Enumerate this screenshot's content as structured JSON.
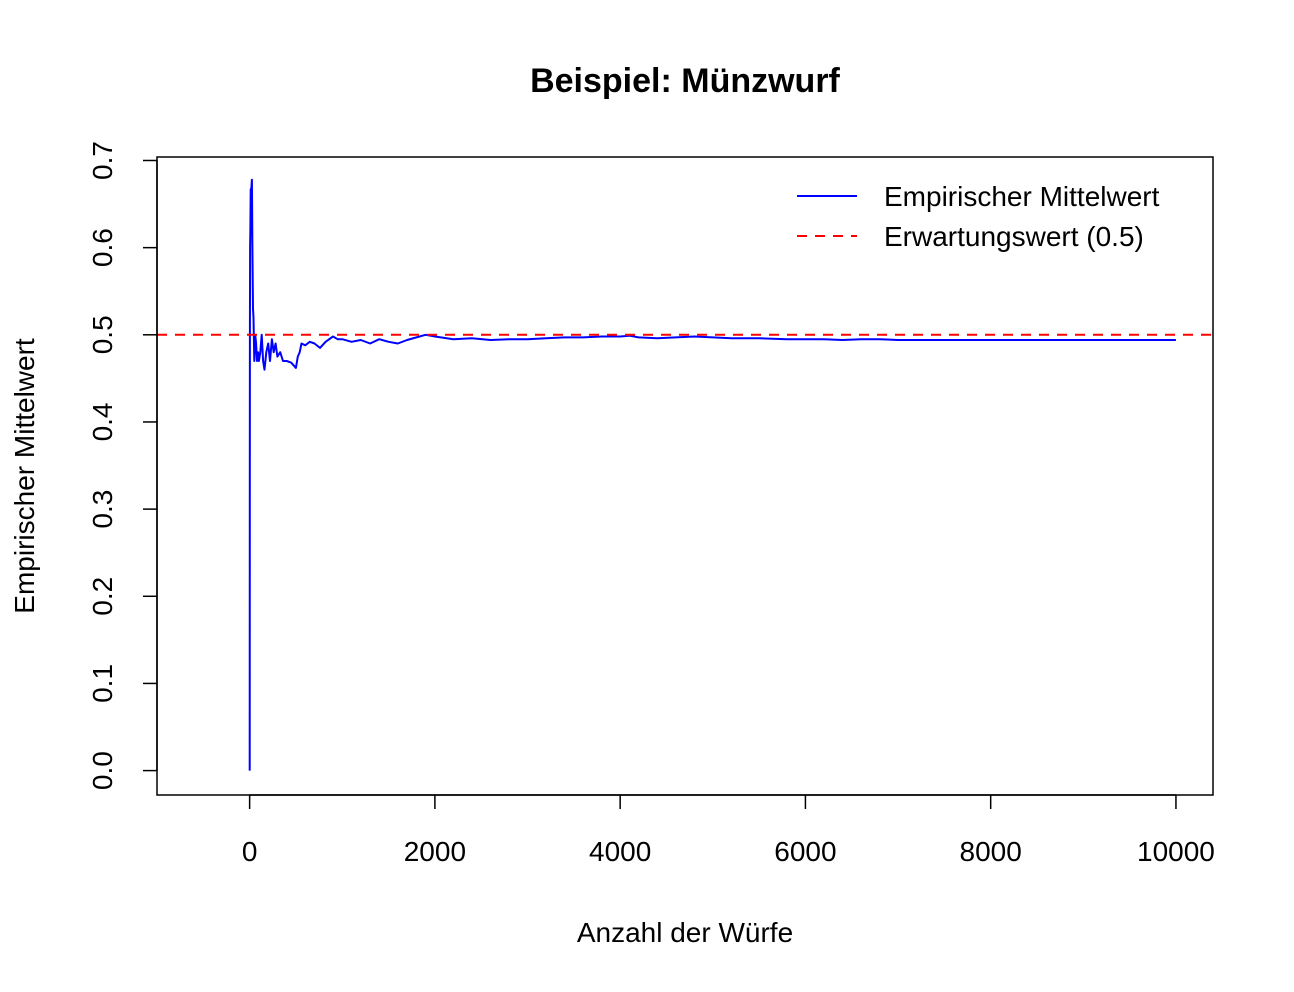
{
  "chart_data": {
    "type": "line",
    "title": "Beispiel: Münzwurf",
    "xlabel": "Anzahl der Würfe",
    "ylabel": "Empirischer Mittelwert",
    "xlim": [
      -1000,
      10400
    ],
    "ylim": [
      -0.028,
      0.704
    ],
    "x_ticks": [
      0,
      2000,
      4000,
      6000,
      8000,
      10000
    ],
    "x_tick_labels": [
      "0",
      "2000",
      "4000",
      "6000",
      "8000",
      "10000"
    ],
    "y_ticks": [
      0.0,
      0.1,
      0.2,
      0.3,
      0.4,
      0.5,
      0.6,
      0.7
    ],
    "y_tick_labels": [
      "0.0",
      "0.1",
      "0.2",
      "0.3",
      "0.4",
      "0.5",
      "0.6",
      "0.7"
    ],
    "grid": false,
    "legend_position": "top-right",
    "series": [
      {
        "name": "Empirischer Mittelwert",
        "color": "#0000ff",
        "style": "solid",
        "x": [
          1,
          2,
          3,
          5,
          8,
          12,
          18,
          25,
          30,
          36,
          42,
          50,
          60,
          70,
          80,
          90,
          100,
          115,
          130,
          145,
          160,
          180,
          200,
          220,
          240,
          260,
          280,
          300,
          330,
          360,
          400,
          450,
          500,
          520,
          540,
          560,
          600,
          650,
          700,
          760,
          820,
          900,
          950,
          1000,
          1100,
          1200,
          1300,
          1400,
          1500,
          1600,
          1700,
          1800,
          1900,
          2000,
          2200,
          2400,
          2600,
          2800,
          3000,
          3200,
          3400,
          3600,
          3800,
          4000,
          4100,
          4200,
          4400,
          4600,
          4800,
          5000,
          5200,
          5500,
          5800,
          6000,
          6200,
          6400,
          6600,
          6800,
          7000,
          7500,
          8000,
          8500,
          9000,
          9500,
          10000
        ],
        "y": [
          0.0,
          0.33,
          0.5,
          0.6,
          0.625,
          0.667,
          0.667,
          0.678,
          0.6,
          0.53,
          0.52,
          0.47,
          0.5,
          0.49,
          0.47,
          0.48,
          0.47,
          0.48,
          0.5,
          0.47,
          0.46,
          0.48,
          0.49,
          0.47,
          0.495,
          0.48,
          0.49,
          0.475,
          0.48,
          0.47,
          0.47,
          0.468,
          0.462,
          0.475,
          0.48,
          0.49,
          0.488,
          0.492,
          0.49,
          0.485,
          0.492,
          0.498,
          0.495,
          0.495,
          0.492,
          0.494,
          0.49,
          0.495,
          0.492,
          0.49,
          0.494,
          0.497,
          0.5,
          0.498,
          0.495,
          0.496,
          0.494,
          0.495,
          0.495,
          0.496,
          0.497,
          0.497,
          0.498,
          0.498,
          0.499,
          0.497,
          0.496,
          0.497,
          0.498,
          0.497,
          0.496,
          0.496,
          0.495,
          0.495,
          0.495,
          0.494,
          0.495,
          0.495,
          0.494,
          0.494,
          0.494,
          0.494,
          0.494,
          0.494,
          0.494
        ]
      },
      {
        "name": "Erwartungswert (0.5)",
        "color": "#ff0000",
        "style": "dashed",
        "hline": 0.5
      }
    ]
  }
}
